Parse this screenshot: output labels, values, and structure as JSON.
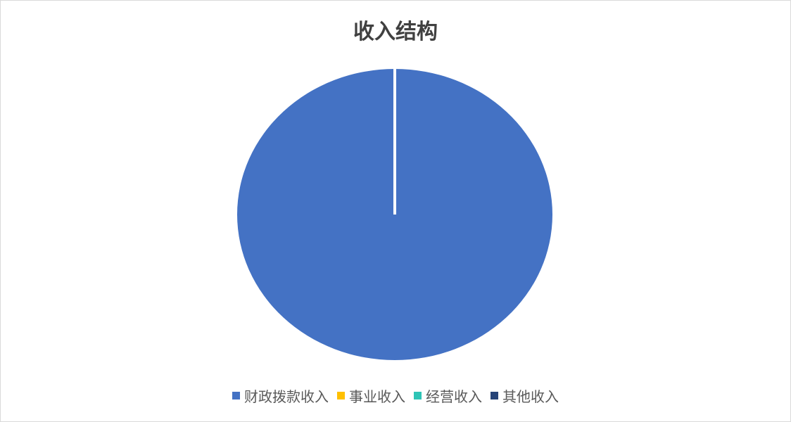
{
  "chart_data": {
    "type": "pie",
    "title": "收入结构",
    "categories": [
      "财政拨款收入",
      "事业收入",
      "经营收入",
      "其他收入"
    ],
    "values": [
      100,
      0,
      0,
      0
    ],
    "unit": "%",
    "colors": [
      "#4472C4",
      "#FFC000",
      "#2EC4B6",
      "#264478"
    ],
    "legend": "bottom"
  }
}
